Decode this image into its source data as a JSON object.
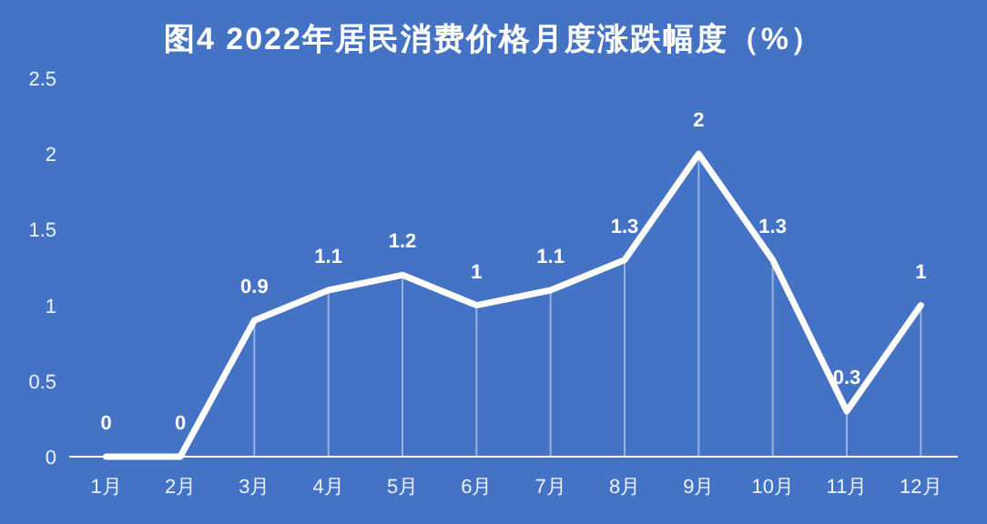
{
  "chart_data": {
    "type": "line",
    "title": "图4 2022年居民消费价格月度涨跌幅度（%）",
    "categories": [
      "1月",
      "2月",
      "3月",
      "4月",
      "5月",
      "6月",
      "7月",
      "8月",
      "9月",
      "10月",
      "11月",
      "12月"
    ],
    "series": [
      {
        "color": "#ffffff",
        "values": [
          0,
          0,
          0.9,
          1.1,
          1.2,
          1,
          1.1,
          1.3,
          2,
          1.3,
          0.3,
          1
        ]
      }
    ],
    "ylim": [
      0,
      2.5
    ],
    "yticks": [
      0,
      0.5,
      1,
      1.5,
      2,
      2.5
    ],
    "grid": "x",
    "marker": "none",
    "line_style": "solid",
    "data_labels": true
  }
}
